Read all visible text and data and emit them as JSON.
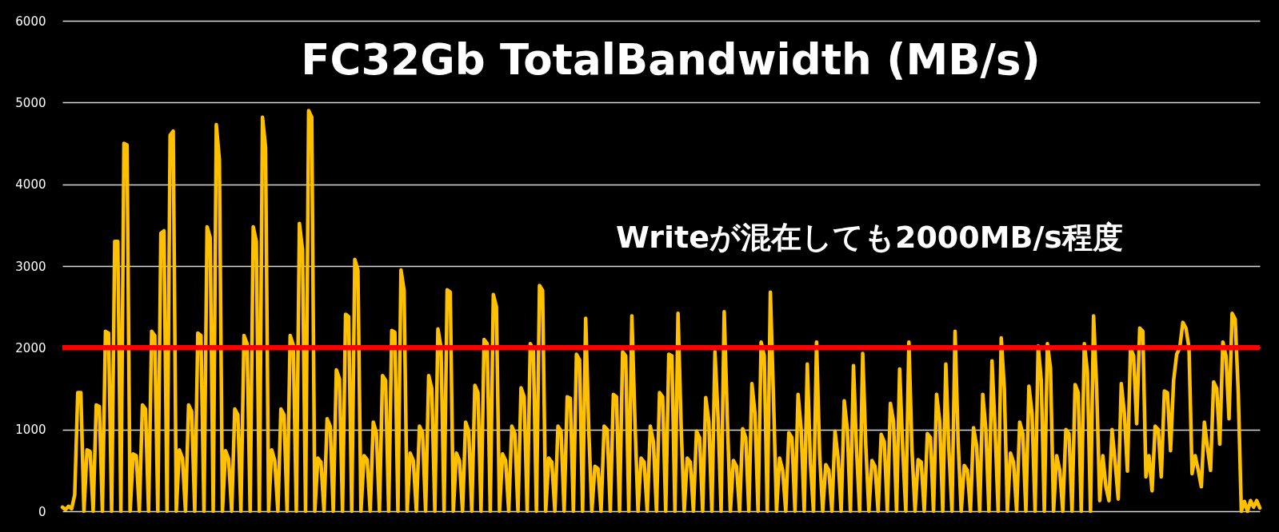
{
  "chart_data": {
    "type": "line",
    "title": "FC32Gb TotalBandwidth (MB/s)",
    "annotations": [
      "Writeが混在しても2000MB/s程度"
    ],
    "categories": [
      null,
      null,
      null,
      null,
      null,
      null,
      null,
      null,
      null,
      null,
      null,
      null,
      null,
      null,
      null,
      null,
      null,
      null,
      null,
      null,
      null,
      null,
      null,
      null,
      null,
      null,
      null,
      null,
      null,
      null,
      null,
      null,
      null,
      null,
      null,
      null,
      null,
      null,
      null,
      null,
      null,
      null,
      null,
      null,
      null,
      null,
      null,
      null,
      null,
      null,
      null,
      null,
      null,
      null,
      null,
      null,
      null,
      null,
      null,
      null,
      null,
      null,
      null,
      null,
      null,
      null,
      null,
      null,
      null,
      null,
      null,
      null,
      null,
      null,
      null,
      null,
      null,
      null,
      null,
      null,
      null,
      null,
      null,
      null,
      null,
      null,
      null,
      null,
      null,
      null,
      null,
      null,
      null,
      null,
      null,
      null,
      null,
      null,
      null,
      null,
      null,
      null,
      null,
      null,
      null,
      null,
      null,
      null,
      null,
      null,
      null,
      null,
      null,
      null,
      null,
      null,
      null,
      null,
      null,
      null,
      null,
      null,
      null,
      null,
      null,
      null,
      null,
      null,
      null,
      null,
      null,
      null,
      null,
      null,
      null,
      null,
      null,
      null,
      null,
      null,
      null,
      null,
      null,
      null,
      null,
      null,
      null,
      null,
      null,
      null,
      null,
      null,
      null,
      null,
      null,
      null,
      null,
      null,
      null,
      null,
      null,
      null,
      null,
      null,
      null,
      null,
      null,
      null,
      null,
      null,
      null,
      null,
      null,
      null,
      null,
      null,
      null,
      null,
      null,
      null,
      null,
      null,
      null,
      null,
      null,
      null,
      null,
      null,
      null,
      null,
      null,
      null,
      null,
      null,
      null,
      null,
      null,
      null,
      null,
      null,
      null,
      null,
      null,
      null,
      null,
      null,
      null,
      null,
      null,
      null,
      null,
      null,
      null,
      null,
      null,
      null,
      null,
      null,
      null,
      null,
      null,
      null,
      null,
      null,
      null,
      null,
      null,
      null,
      null,
      null,
      null,
      null,
      null,
      null,
      null,
      null,
      null,
      null,
      null,
      null,
      null,
      null,
      null,
      null,
      null,
      null,
      null,
      null,
      null,
      null,
      null,
      null,
      null,
      null,
      null,
      null,
      null,
      null,
      null,
      null,
      null,
      null,
      null,
      null,
      null,
      null,
      null,
      null,
      null,
      null,
      null,
      null,
      null,
      null,
      null,
      null,
      null,
      null,
      null,
      null,
      null,
      null,
      null,
      null,
      null,
      null,
      null,
      null,
      null,
      null,
      null,
      null,
      null,
      null,
      null,
      null,
      null,
      null,
      null,
      null,
      null,
      null,
      null,
      null,
      null,
      null,
      null,
      null,
      null,
      null,
      null,
      null,
      null,
      null,
      null,
      null,
      null,
      null,
      null,
      null,
      null,
      null,
      null,
      null,
      null,
      null,
      null,
      null,
      null,
      null,
      null,
      null,
      null,
      null,
      null,
      null,
      null,
      null,
      null,
      null,
      null,
      null,
      null,
      null,
      null,
      null,
      null,
      null,
      null,
      null,
      null,
      null,
      null,
      null,
      null,
      null,
      null,
      null,
      null,
      null,
      null,
      null,
      null,
      null,
      null,
      null,
      null,
      null,
      null,
      null,
      null,
      null,
      null,
      null,
      null,
      null,
      null,
      null,
      null,
      null,
      null,
      null,
      null,
      null,
      null,
      null,
      null,
      null,
      null,
      null
    ],
    "series": [
      {
        "color": "#ffc000",
        "values": [
          50,
          20,
          60,
          30,
          200,
          1450,
          1450,
          0,
          750,
          730,
          0,
          1300,
          1280,
          0,
          2200,
          2180,
          0,
          3300,
          3300,
          0,
          4500,
          4480,
          0,
          700,
          680,
          0,
          1300,
          1250,
          0,
          2200,
          2150,
          0,
          3400,
          3430,
          0,
          4600,
          4650,
          0,
          750,
          650,
          0,
          1300,
          1220,
          0,
          2180,
          2150,
          0,
          3480,
          3350,
          0,
          4730,
          4300,
          0,
          740,
          640,
          0,
          1250,
          1180,
          0,
          2150,
          2050,
          0,
          3480,
          3300,
          0,
          4820,
          4450,
          0,
          750,
          620,
          0,
          1250,
          1180,
          0,
          2150,
          2030,
          0,
          3520,
          3200,
          0,
          4900,
          4820,
          0,
          650,
          600,
          0,
          1130,
          1040,
          0,
          1730,
          1620,
          0,
          2410,
          2380,
          0,
          3080,
          2950,
          0,
          680,
          630,
          0,
          1090,
          960,
          0,
          1660,
          1600,
          0,
          2210,
          2190,
          0,
          2950,
          2700,
          0,
          710,
          620,
          0,
          1040,
          960,
          0,
          1660,
          1500,
          0,
          2230,
          2000,
          0,
          2710,
          2680,
          0,
          710,
          620,
          0,
          1090,
          980,
          0,
          1540,
          1450,
          0,
          2100,
          2050,
          0,
          2650,
          2500,
          0,
          700,
          620,
          0,
          1040,
          950,
          0,
          1510,
          1400,
          0,
          2050,
          1980,
          0,
          2760,
          2700,
          0,
          650,
          600,
          0,
          1040,
          980,
          0,
          1400,
          1380,
          0,
          1920,
          1850,
          0,
          2360,
          1000,
          0,
          550,
          520,
          0,
          1040,
          1000,
          0,
          1430,
          1400,
          0,
          1950,
          1900,
          0,
          2390,
          1100,
          0,
          650,
          600,
          0,
          1040,
          850,
          0,
          1450,
          1400,
          0,
          1920,
          1900,
          0,
          2420,
          1050,
          0,
          650,
          600,
          0,
          980,
          900,
          0,
          1390,
          1100,
          0,
          1950,
          1150,
          0,
          2440,
          1150,
          0,
          620,
          550,
          0,
          1010,
          900,
          0,
          1560,
          1200,
          0,
          2070,
          1900,
          0,
          2680,
          1400,
          0,
          650,
          500,
          0,
          960,
          900,
          0,
          1430,
          1000,
          0,
          1800,
          600,
          0,
          2070,
          700,
          0,
          570,
          500,
          0,
          980,
          650,
          0,
          1350,
          1000,
          0,
          1780,
          750,
          0,
          1930,
          800,
          0,
          620,
          550,
          0,
          940,
          850,
          0,
          1320,
          1100,
          0,
          1740,
          750,
          0,
          2070,
          750,
          0,
          630,
          600,
          0,
          950,
          900,
          0,
          1430,
          1100,
          0,
          1800,
          750,
          0,
          2200,
          850,
          0,
          560,
          500,
          0,
          1020,
          800,
          0,
          1430,
          1000,
          0,
          1840,
          1000,
          0,
          2120,
          1500,
          0,
          710,
          600,
          0,
          1090,
          950,
          0,
          1530,
          1200,
          0,
          2020,
          1600,
          0,
          2050,
          1750,
          0,
          680,
          500,
          0,
          1000,
          950,
          0,
          1550,
          1450,
          0,
          2050,
          1700,
          0,
          2390,
          1500,
          130,
          680,
          300,
          130,
          1000,
          600,
          150,
          1560,
          1200,
          490,
          2000,
          1900,
          1070,
          2240,
          2200,
          420,
          680,
          250,
          1040,
          1000,
          420,
          1470,
          1450,
          740,
          1600,
          1920,
          2000,
          2310,
          2240,
          2000,
          460,
          680,
          500,
          300,
          1090,
          780,
          500,
          1580,
          1500,
          820,
          2070,
          1900,
          1130,
          2420,
          2350,
          1450,
          0,
          120,
          0,
          130,
          50,
          130,
          40
        ]
      }
    ],
    "ylim": [
      0,
      6000
    ],
    "yticks": [
      0,
      1000,
      2000,
      3000,
      4000,
      5000,
      6000
    ],
    "grid": "y",
    "tick_labels": "y",
    "ref_lines": [
      {
        "axis": "y",
        "value": 2000,
        "color": "#ff0000"
      }
    ]
  }
}
